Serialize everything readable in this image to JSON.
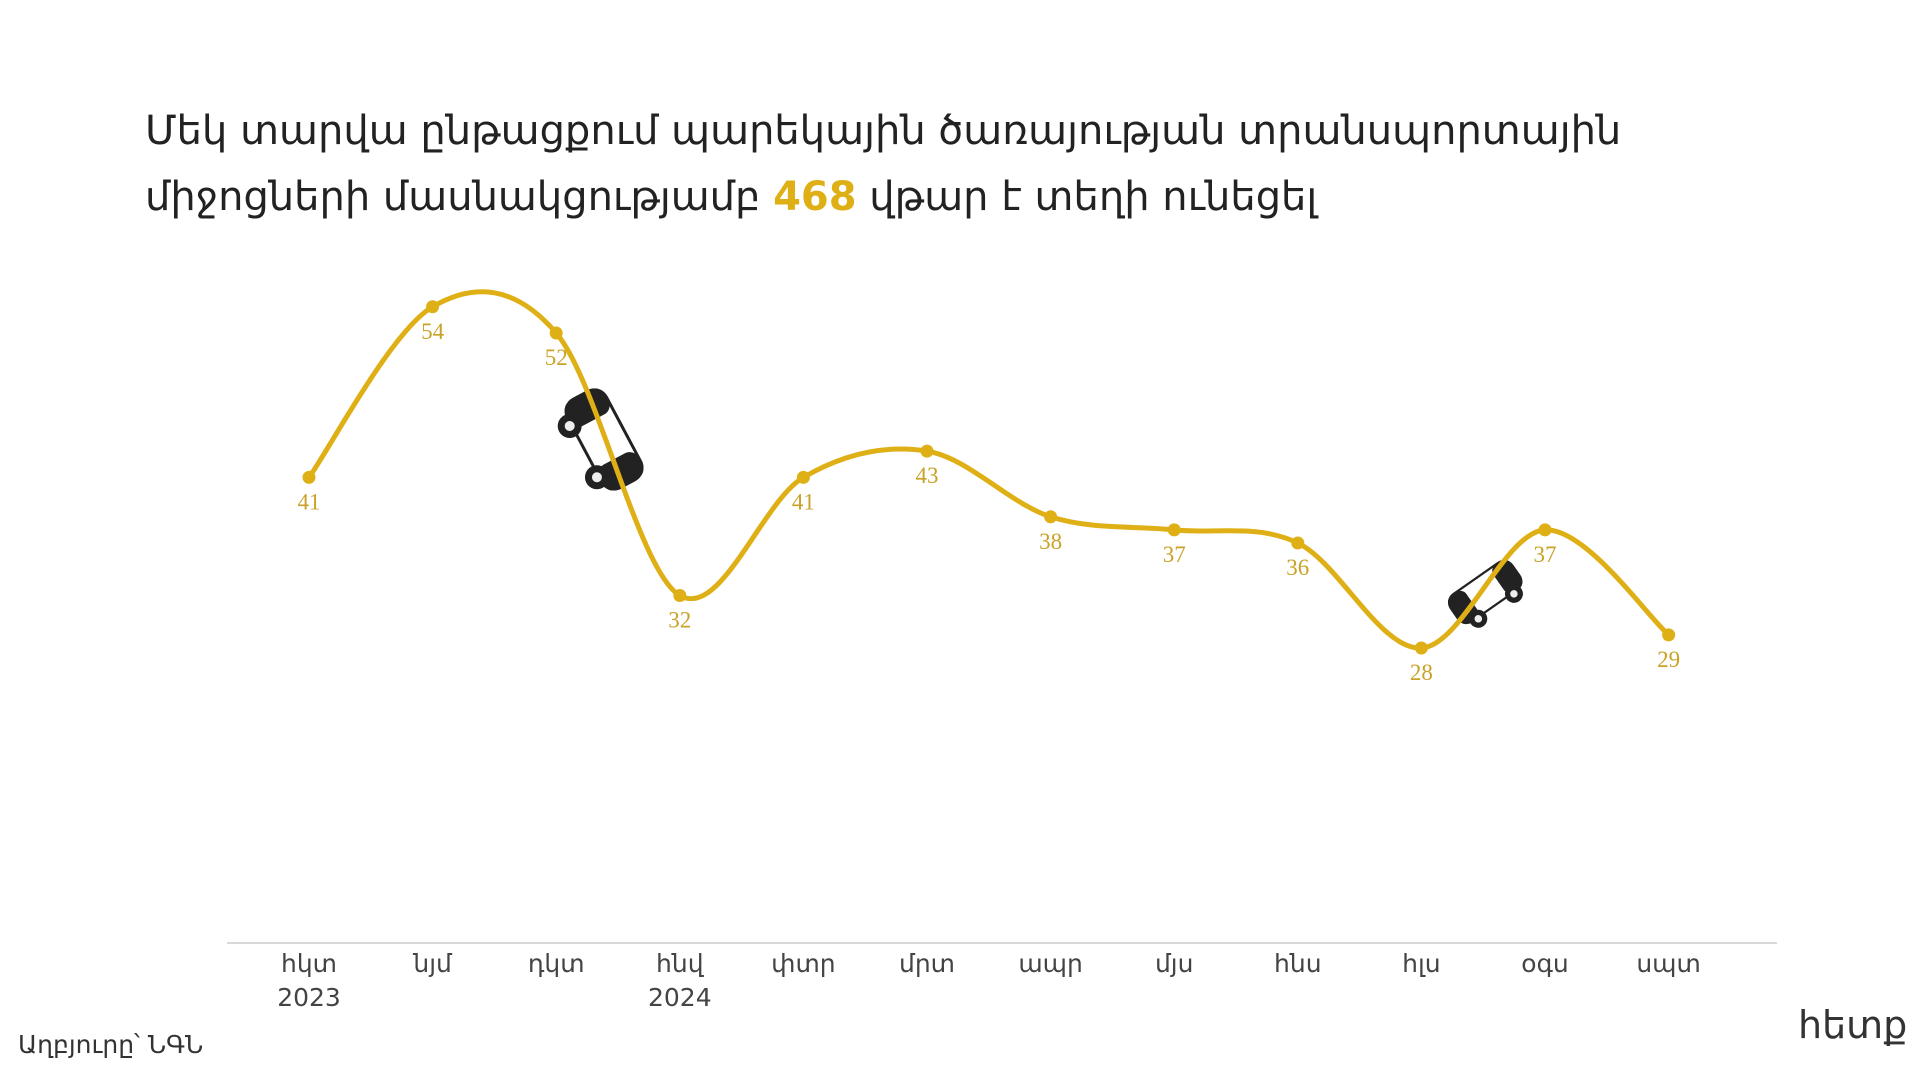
{
  "chart_data": {
    "type": "line",
    "title_parts": [
      "Մեկ տարվա ընթացքում պարեկային ծառայության տրանսպորտային միջոցների մասնակցությամբ ",
      "468",
      " վթար է տեղի ունեցել"
    ],
    "categories": [
      "հկտ\n2023",
      "նյմ",
      "դկտ",
      "հնվ\n2024",
      "փտր",
      "մրտ",
      "ապր",
      "մյս",
      "հնս",
      "հլս",
      "օգս",
      "սպտ"
    ],
    "values": [
      41,
      54,
      52,
      32,
      41,
      43,
      38,
      37,
      36,
      28,
      37,
      29
    ],
    "color": "#dfb015",
    "label_color": "#c9a227",
    "highlight_color": "#dfb015",
    "ylim": [
      20,
      60
    ],
    "source": "Աղբյուրը՝ ՆԳՆ",
    "logo": "հետք"
  }
}
